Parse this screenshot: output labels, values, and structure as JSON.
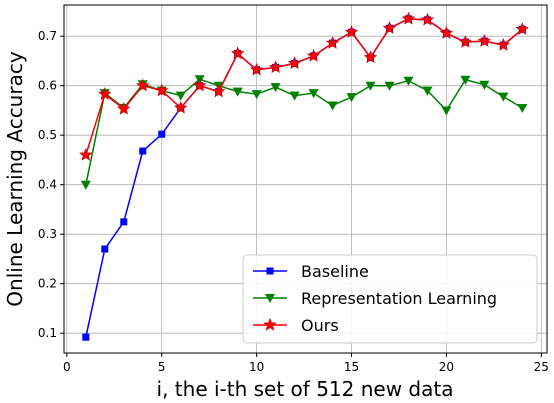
{
  "chart_data": {
    "type": "line",
    "xlabel": "i, the i-th set of 512 new data",
    "ylabel": "Online Learning Accuracy",
    "x": [
      1,
      2,
      3,
      4,
      5,
      6,
      7,
      8,
      9,
      10,
      11,
      12,
      13,
      14,
      15,
      16,
      17,
      18,
      19,
      20,
      21,
      22,
      23,
      24
    ],
    "series": [
      {
        "name": "Baseline",
        "color": "#0000ff",
        "marker": "square",
        "values": [
          0.092,
          0.27,
          0.325,
          0.468,
          0.502,
          0.555,
          0.6,
          0.588,
          0.665,
          0.632,
          0.637,
          0.645,
          0.66,
          0.686,
          0.708,
          0.657,
          0.716,
          0.735,
          0.733,
          0.706,
          0.688,
          0.69,
          0.682,
          0.714
        ]
      },
      {
        "name": "Representation Learning",
        "color": "#008000",
        "marker": "triangle-down",
        "values": [
          0.4,
          0.585,
          0.555,
          0.603,
          0.59,
          0.58,
          0.613,
          0.6,
          0.588,
          0.583,
          0.597,
          0.58,
          0.585,
          0.56,
          0.577,
          0.6,
          0.6,
          0.61,
          0.59,
          0.55,
          0.612,
          0.602,
          0.578,
          0.555
        ]
      },
      {
        "name": "Ours",
        "color": "#ff0000",
        "marker": "star",
        "values": [
          0.46,
          0.583,
          0.553,
          0.6,
          0.59,
          0.555,
          0.6,
          0.588,
          0.665,
          0.632,
          0.637,
          0.645,
          0.66,
          0.686,
          0.708,
          0.657,
          0.716,
          0.735,
          0.733,
          0.706,
          0.688,
          0.69,
          0.682,
          0.714
        ]
      }
    ],
    "xlim": [
      -0.15,
      25.3
    ],
    "ylim": [
      0.06,
      0.763
    ],
    "xticks": [
      0,
      5,
      10,
      15,
      20,
      25
    ],
    "yticks": [
      0.1,
      0.2,
      0.3,
      0.4,
      0.5,
      0.6,
      0.7
    ],
    "grid": true,
    "legend": "lower right"
  }
}
